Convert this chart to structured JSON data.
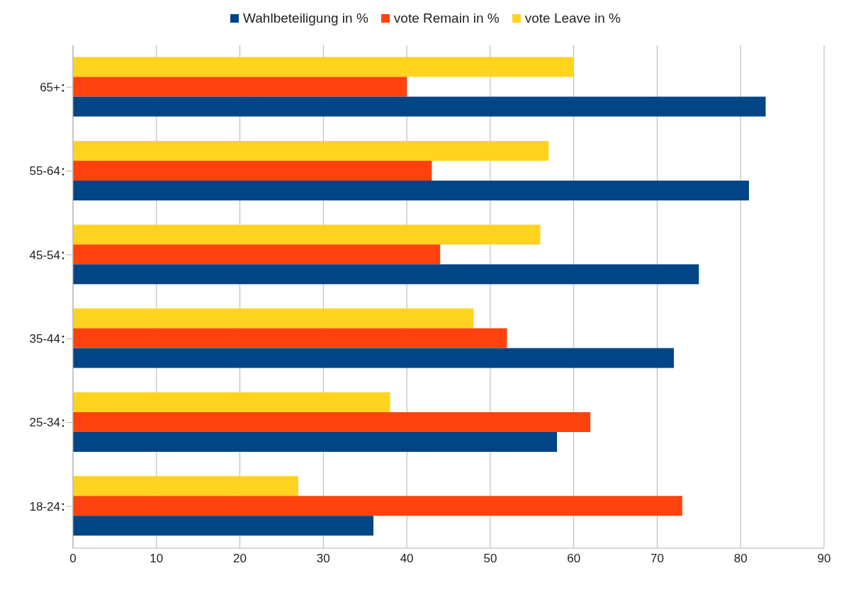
{
  "chart_data": {
    "type": "bar",
    "orientation": "horizontal",
    "categories": [
      "65+",
      "55-64",
      "45-54",
      "35-44",
      "25-34",
      "18-24"
    ],
    "series": [
      {
        "name": "Wahlbeteiligung in %",
        "color": "#004586",
        "values": [
          83,
          81,
          75,
          72,
          58,
          36
        ]
      },
      {
        "name": "vote Remain in %",
        "color": "#ff420e",
        "values": [
          40,
          43,
          44,
          52,
          62,
          73
        ]
      },
      {
        "name": "vote Leave in %",
        "color": "#ffd320",
        "values": [
          60,
          57,
          56,
          48,
          38,
          27
        ]
      }
    ],
    "xlim": [
      0,
      90
    ],
    "xticks": [
      0,
      10,
      20,
      30,
      40,
      50,
      60,
      70,
      80,
      90
    ],
    "grid": "x",
    "legend": "top"
  }
}
